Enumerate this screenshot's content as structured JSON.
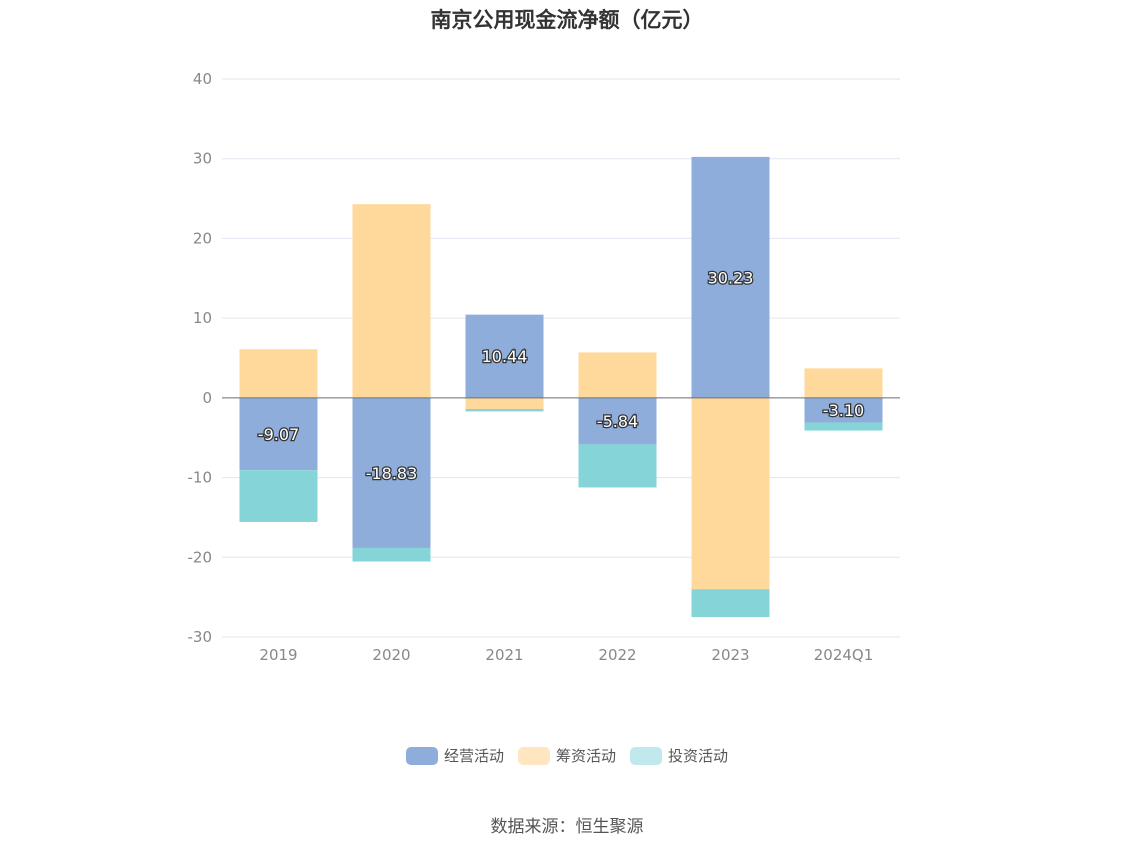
{
  "chart_data": {
    "type": "bar",
    "stacked": true,
    "title": "南京公用现金流净额（亿元）",
    "categories": [
      "2019",
      "2020",
      "2021",
      "2022",
      "2023",
      "2024Q1"
    ],
    "series": [
      {
        "name": "经营活动",
        "color": "#8eadda",
        "values": [
          -9.07,
          -18.83,
          10.44,
          -5.84,
          30.23,
          -3.1
        ],
        "labels": [
          "-9.07",
          "-18.83",
          "10.44",
          "-5.84",
          "30.23",
          "-3.10"
        ]
      },
      {
        "name": "筹资活动",
        "color": "#ffd99b",
        "values": [
          6.1,
          24.3,
          -1.4,
          5.7,
          -24.0,
          3.7
        ]
      },
      {
        "name": "投资活动",
        "color": "#85d4d8",
        "values": [
          -6.5,
          -1.7,
          -0.3,
          -5.4,
          -3.5,
          -1.0
        ]
      }
    ],
    "yticks": [
      "40",
      "30",
      "20",
      "10",
      "0",
      "-10",
      "-20",
      "-30"
    ],
    "ylim": [
      -30,
      40
    ],
    "grid": true,
    "legend_position": "bottom",
    "legend_colors": [
      "#8eadda",
      "#ffe6c0",
      "#bfe9ec"
    ]
  },
  "source": "数据来源：恒生聚源"
}
